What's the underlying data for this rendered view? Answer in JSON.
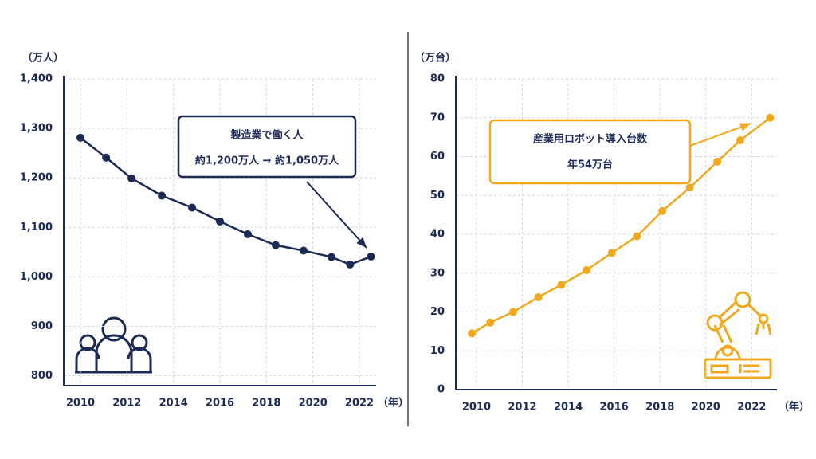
{
  "chart_data": [
    {
      "type": "line",
      "unit_y": "（万人）",
      "unit_x": "（年）",
      "x": [
        2010,
        2011.1,
        2012.2,
        2013.5,
        2014.8,
        2016,
        2017.2,
        2018.4,
        2019.6,
        2020.8,
        2021.6,
        2022.5
      ],
      "series": [
        {
          "name": "製造業で働く人",
          "color": "#1b2a55",
          "values": [
            1281,
            1241,
            1199,
            1164,
            1140,
            1112,
            1086,
            1064,
            1053,
            1040,
            1025,
            1041
          ]
        }
      ],
      "annotation": "約1,200万人 → 約1,050万人",
      "xlim": [
        2009.28,
        2022.72
      ],
      "xticks": [
        2010,
        2012,
        2014,
        2016,
        2018,
        2020,
        2022
      ],
      "ylim": [
        780,
        1400
      ],
      "yticks": [
        800,
        900,
        {
          "value": 1000,
          "label": "1,000"
        },
        {
          "value": 1100,
          "label": "1,100"
        },
        {
          "value": 1200,
          "label": "1,200"
        },
        {
          "value": 1300,
          "label": "1,300"
        },
        {
          "value": 1400,
          "label": "1,400"
        }
      ],
      "grid": true
    },
    {
      "type": "line",
      "unit_y": "（万台）",
      "unit_x": "（年）",
      "x": [
        2009.8,
        2010.6,
        2011.6,
        2012.7,
        2013.7,
        2014.8,
        2015.9,
        2017,
        2018.1,
        2019.3,
        2020.5,
        2021.5,
        2022.8
      ],
      "series": [
        {
          "name": "産業用ロボット導入台数",
          "color": "#f0a81c",
          "values": [
            14.5,
            17.3,
            20,
            23.8,
            27,
            30.8,
            35.2,
            39.5,
            46,
            52,
            58.7,
            64.2,
            70
          ]
        }
      ],
      "annotation": "年54万台",
      "xlim": [
        2009.1,
        2023.1
      ],
      "xticks": [
        2010,
        2012,
        2014,
        2016,
        2018,
        2020,
        2022
      ],
      "ylim": [
        0,
        80
      ],
      "yticks": [
        0,
        10,
        20,
        30,
        40,
        50,
        60,
        70,
        80
      ],
      "grid": true
    }
  ]
}
